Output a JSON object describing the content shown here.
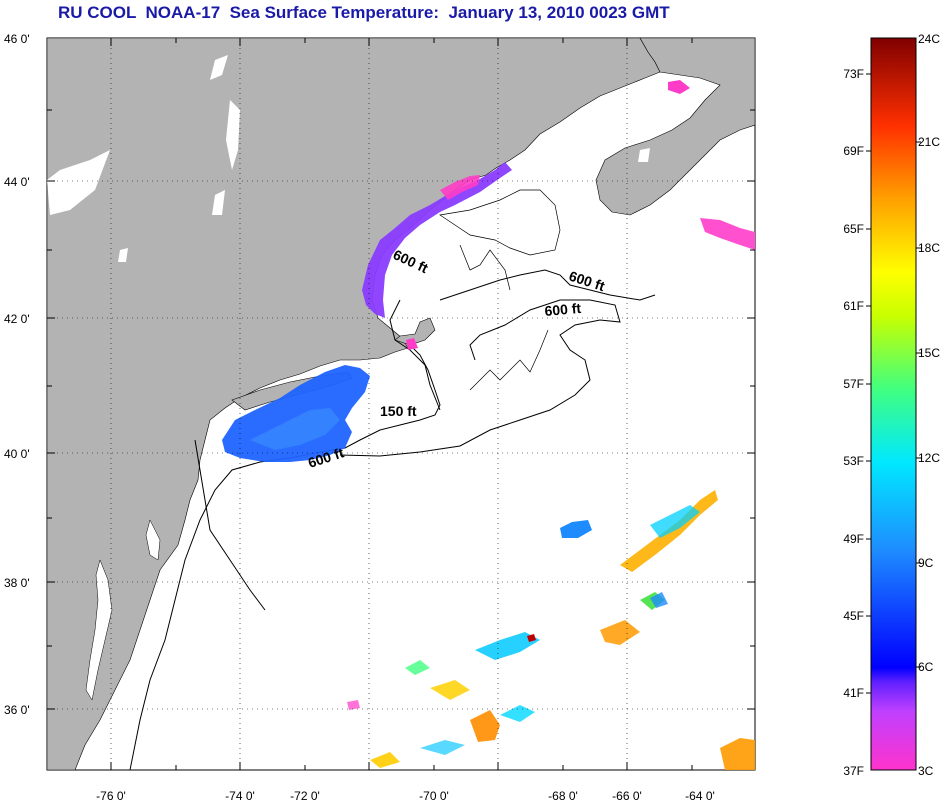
{
  "title": "RU COOL  NOAA-17  Sea Surface Temperature:  January 13, 2010 0023 GMT",
  "lat_labels": [
    "46 0'",
    "44 0'",
    "42 0'",
    "40 0'",
    "38 0'",
    "36 0'"
  ],
  "lon_labels": [
    "-76 0'",
    "-74 0'",
    "-72 0'",
    "-70 0'",
    "-68 0'",
    "-66 0'",
    "-64 0'"
  ],
  "contour_labels": [
    "600 ft",
    "600 ft",
    "600 ft",
    "150 ft",
    "600 ft"
  ],
  "colorbar": {
    "fahrenheit": [
      "73F",
      "69F",
      "65F",
      "61F",
      "57F",
      "53F",
      "49F",
      "45F",
      "41F",
      "37F"
    ],
    "celsius": [
      "24C",
      "21C",
      "18C",
      "15C",
      "12C",
      "9C",
      "6C",
      "3C"
    ]
  },
  "colors": {
    "land": "#b3b3b3",
    "title": "#1a1aa8",
    "sst_cold": "#ff3cc8",
    "sst_mid": "#1e64ff",
    "sst_warm": "#c00000"
  }
}
